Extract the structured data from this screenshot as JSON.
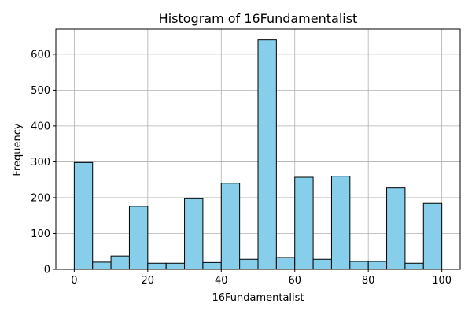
{
  "chart_data": {
    "type": "bar",
    "title": "Histogram of 16Fundamentalist",
    "xlabel": "16Fundamentalist",
    "ylabel": "Frequency",
    "xlim": [
      -5,
      105
    ],
    "ylim": [
      0,
      670
    ],
    "grid": true,
    "bar_color": "#87ceeb",
    "edge_color": "#000000",
    "bin_width": 5,
    "bins_start": [
      0,
      5,
      10,
      15,
      20,
      25,
      30,
      35,
      40,
      45,
      50,
      55,
      60,
      65,
      70,
      75,
      80,
      85,
      90,
      95
    ],
    "values": [
      298,
      20,
      37,
      176,
      17,
      17,
      197,
      19,
      240,
      28,
      640,
      33,
      257,
      28,
      260,
      22,
      22,
      227,
      17,
      184
    ],
    "x_ticks": [
      0,
      20,
      40,
      60,
      80,
      100
    ],
    "y_ticks": [
      0,
      100,
      200,
      300,
      400,
      500,
      600
    ]
  }
}
